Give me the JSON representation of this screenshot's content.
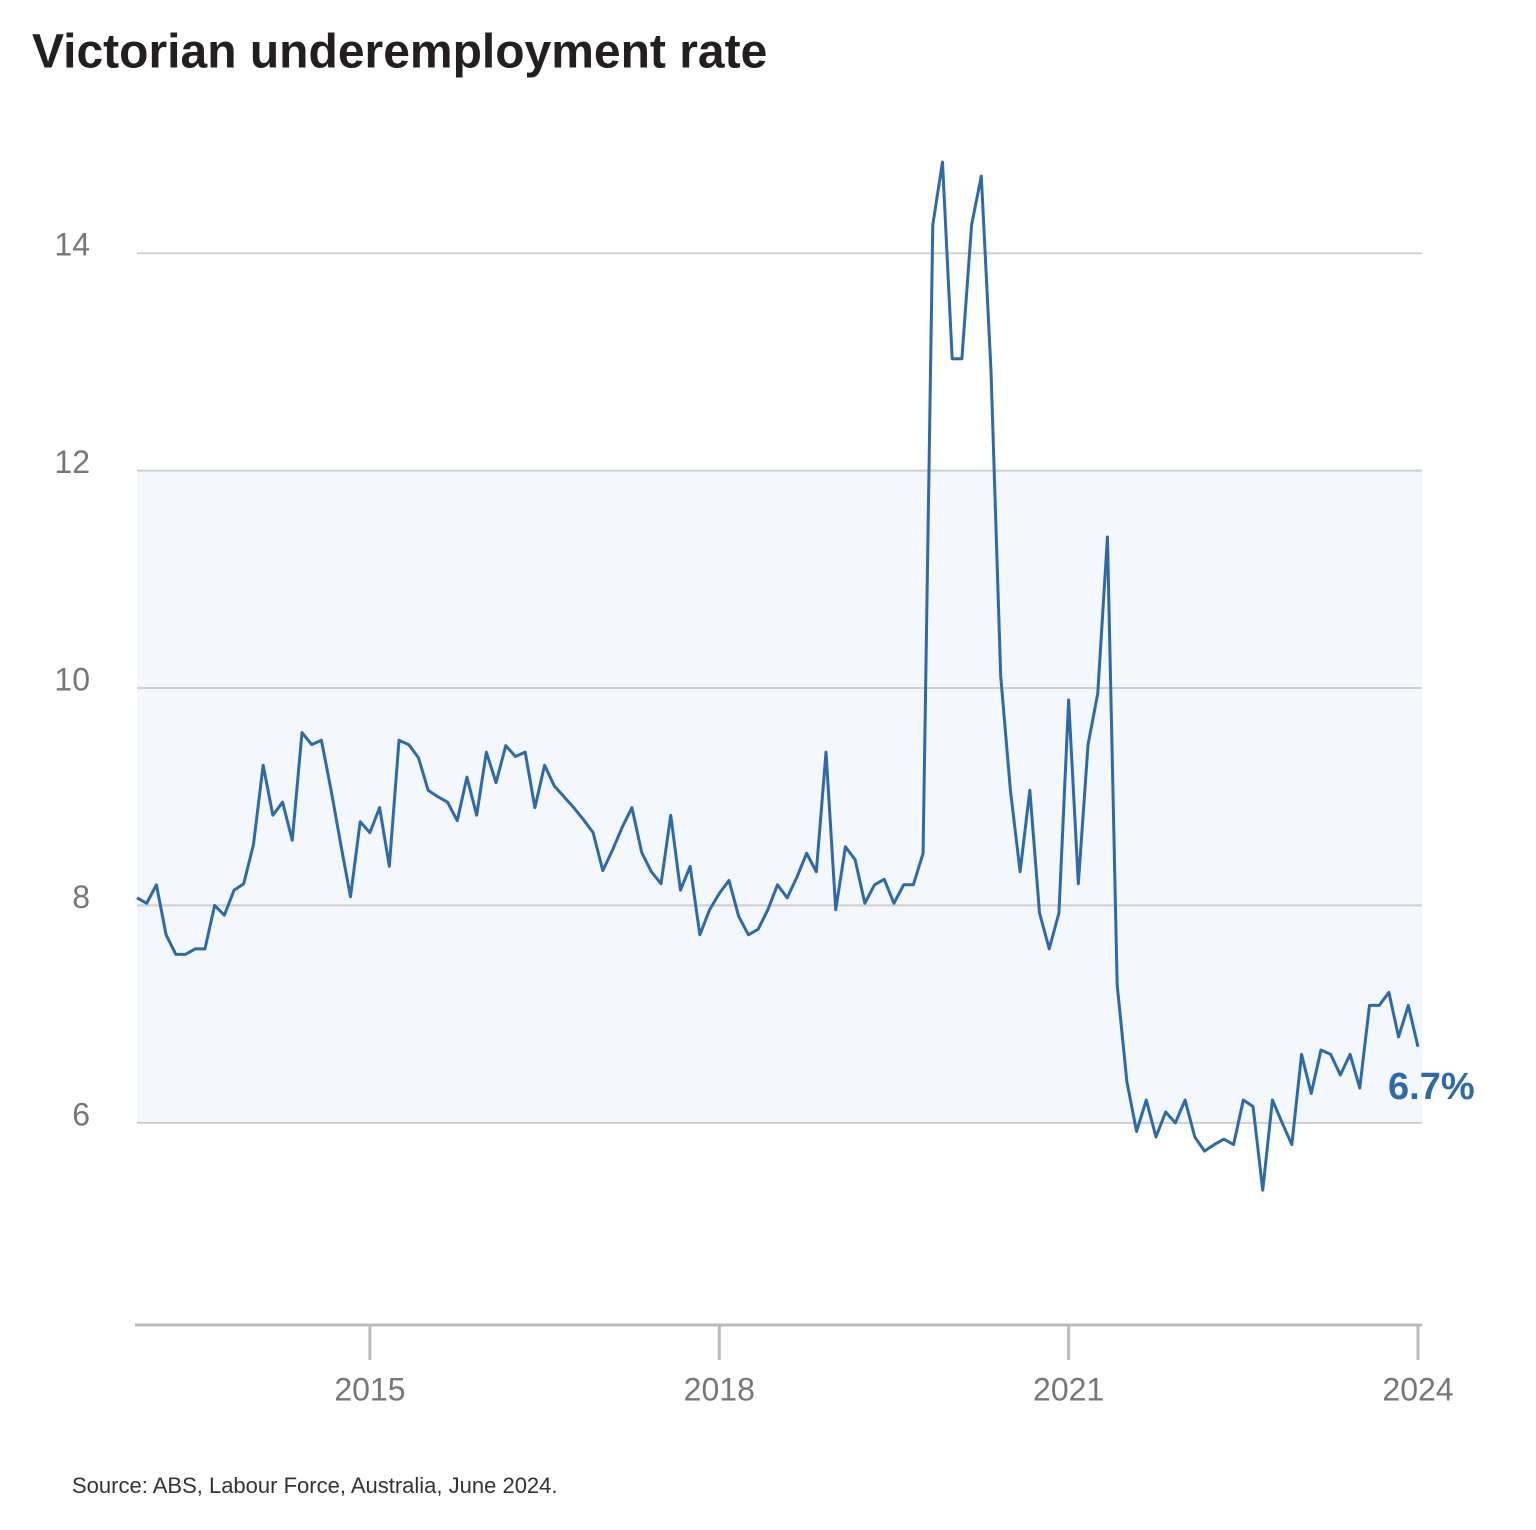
{
  "chart_data": {
    "type": "line",
    "title": "Victorian underemployment rate",
    "source": "Source: ABS, Labour Force, Australia, June 2024.",
    "categories": [
      null,
      null,
      null,
      null,
      null,
      null,
      null,
      null,
      null,
      null,
      null,
      null,
      null,
      null,
      null,
      null,
      null,
      null,
      null,
      null,
      null,
      null,
      null,
      null,
      "2015",
      null,
      null,
      null,
      null,
      null,
      null,
      null,
      null,
      null,
      null,
      null,
      null,
      null,
      null,
      null,
      null,
      null,
      null,
      null,
      null,
      null,
      null,
      null,
      null,
      null,
      null,
      null,
      null,
      null,
      null,
      null,
      null,
      null,
      null,
      null,
      "2018",
      null,
      null,
      null,
      null,
      null,
      null,
      null,
      null,
      null,
      null,
      null,
      null,
      null,
      null,
      null,
      null,
      null,
      null,
      null,
      null,
      null,
      null,
      null,
      null,
      null,
      null,
      null,
      null,
      null,
      null,
      null,
      null,
      null,
      null,
      null,
      "2021",
      null,
      null,
      null,
      null,
      null,
      null,
      null,
      null,
      null,
      null,
      null,
      null,
      null,
      null,
      null,
      null,
      null,
      null,
      null,
      null,
      null,
      null,
      null,
      null,
      null,
      null,
      null,
      null,
      null,
      null,
      null,
      null,
      null,
      null,
      null,
      "2024"
    ],
    "series": [
      {
        "name": "Victorian underemployment rate",
        "color": "#2e6aa8",
        "values": [
          8.07,
          8.02,
          8.19,
          7.73,
          7.55,
          7.55,
          7.6,
          7.6,
          8.0,
          7.91,
          8.14,
          8.2,
          8.56,
          9.29,
          8.83,
          8.95,
          8.6,
          9.59,
          9.48,
          9.52,
          9.06,
          8.56,
          8.08,
          8.77,
          8.67,
          8.9,
          8.36,
          9.52,
          9.48,
          9.36,
          9.06,
          9.0,
          8.95,
          8.78,
          9.18,
          8.83,
          9.41,
          9.13,
          9.47,
          9.37,
          9.41,
          8.9,
          9.29,
          9.1,
          9.0,
          8.9,
          8.79,
          8.67,
          8.32,
          8.51,
          8.72,
          8.9,
          8.49,
          8.31,
          8.2,
          8.83,
          8.14,
          8.36,
          7.73,
          7.96,
          8.11,
          8.23,
          7.9,
          7.73,
          7.78,
          7.96,
          8.19,
          8.07,
          8.26,
          8.48,
          8.31,
          9.41,
          7.96,
          8.54,
          8.42,
          8.02,
          8.19,
          8.24,
          8.02,
          8.19,
          8.19,
          8.48,
          14.26,
          14.84,
          13.03,
          13.03,
          14.26,
          14.71,
          12.92,
          10.11,
          9.06,
          8.31,
          9.06,
          7.93,
          7.6,
          7.93,
          9.89,
          8.2,
          9.48,
          9.95,
          11.39,
          7.27,
          6.38,
          5.92,
          6.21,
          5.87,
          6.1,
          6.0,
          6.21,
          5.87,
          5.74,
          5.8,
          5.85,
          5.8,
          6.21,
          6.15,
          5.38,
          6.21,
          6.0,
          5.8,
          6.63,
          6.27,
          6.67,
          6.63,
          6.44,
          6.63,
          6.32,
          7.08,
          7.08,
          7.2,
          6.79,
          7.08,
          6.7
        ],
        "value_labels": [
          null,
          null,
          null,
          null,
          null,
          null,
          null,
          null,
          null,
          null,
          null,
          null,
          null,
          null,
          null,
          null,
          null,
          null,
          null,
          null,
          null,
          null,
          null,
          null,
          null,
          null,
          null,
          null,
          null,
          null,
          null,
          null,
          null,
          null,
          null,
          null,
          null,
          null,
          null,
          null,
          null,
          null,
          null,
          null,
          null,
          null,
          null,
          null,
          null,
          null,
          null,
          null,
          null,
          null,
          null,
          null,
          null,
          null,
          null,
          null,
          null,
          null,
          null,
          null,
          null,
          null,
          null,
          null,
          null,
          null,
          null,
          null,
          null,
          null,
          null,
          null,
          null,
          null,
          null,
          null,
          null,
          null,
          null,
          null,
          null,
          null,
          null,
          null,
          null,
          null,
          null,
          null,
          null,
          null,
          null,
          null,
          null,
          null,
          null,
          null,
          null,
          null,
          null,
          null,
          null,
          null,
          null,
          null,
          null,
          null,
          null,
          null,
          null,
          null,
          null,
          null,
          null,
          null,
          null,
          null,
          null,
          null,
          null,
          null,
          null,
          null,
          null,
          null,
          null,
          null,
          null,
          null,
          "6.7%"
        ]
      }
    ],
    "band": [
      6,
      12
    ],
    "band_color": "#f4f8fc",
    "ylim": [
      4.14,
      14.95
    ],
    "yticks": [
      6,
      8,
      10,
      12,
      14
    ],
    "grid": true
  }
}
